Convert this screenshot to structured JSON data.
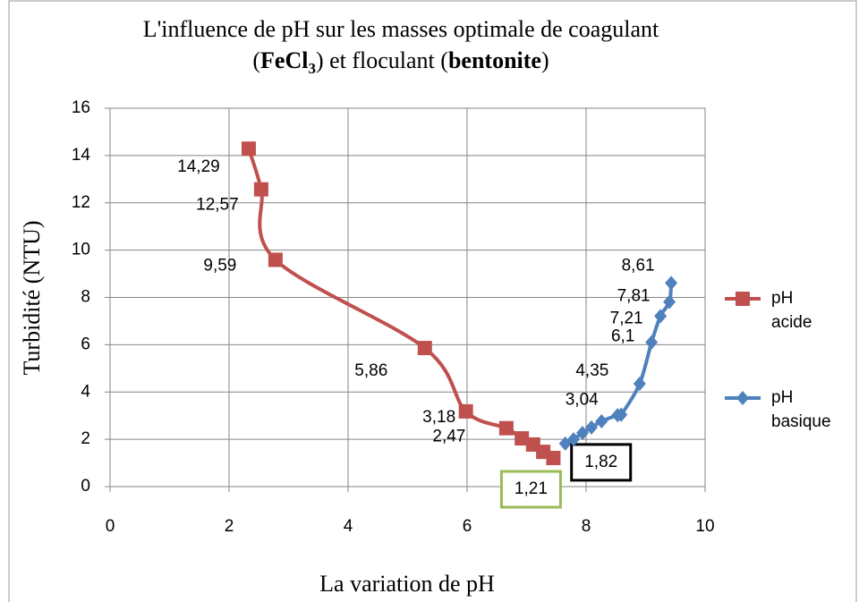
{
  "chart_data": {
    "type": "line",
    "title": [
      "L'influence de pH sur les masses optimale de coagulant",
      "(",
      "FeCl",
      "3",
      ") et floculant (",
      "bentonite",
      ")"
    ],
    "x_label": "La variation de pH",
    "y_label": "Turbidité (NTU)",
    "xlim": [
      0,
      10
    ],
    "xticks": [
      0,
      2,
      4,
      6,
      8,
      10
    ],
    "ylim": [
      0,
      16
    ],
    "yticks": [
      0,
      2,
      4,
      6,
      8,
      10,
      12,
      14,
      16
    ],
    "grid": true,
    "legend": "right",
    "series": [
      {
        "name": "pH acide",
        "color": "#c0504d",
        "marker": "square",
        "x": [
          2.33,
          2.54,
          2.78,
          5.29,
          5.98,
          6.66,
          6.92,
          7.11,
          7.28,
          7.45
        ],
        "values": [
          14.29,
          12.57,
          9.59,
          5.86,
          3.18,
          2.47,
          2.04,
          1.78,
          1.47,
          1.21
        ],
        "value_labels": [
          "14,29",
          "12,57",
          "9,59",
          "5,86",
          "3,18",
          "2,47",
          null,
          null,
          null,
          "1,21"
        ]
      },
      {
        "name": "pH basique",
        "color": "#4f81bd",
        "marker": "diamond",
        "x": [
          7.65,
          7.79,
          7.94,
          8.09,
          8.26,
          8.53,
          8.59,
          8.9,
          9.1,
          9.25,
          9.4,
          9.43
        ],
        "values": [
          1.82,
          2.0,
          2.27,
          2.5,
          2.76,
          3.02,
          3.04,
          4.35,
          6.1,
          7.21,
          7.81,
          8.61
        ],
        "value_labels": [
          "1,82",
          null,
          null,
          null,
          null,
          null,
          "3,04",
          "4,35",
          "6,1",
          "7,21",
          "7,81",
          "8,61"
        ]
      }
    ]
  }
}
